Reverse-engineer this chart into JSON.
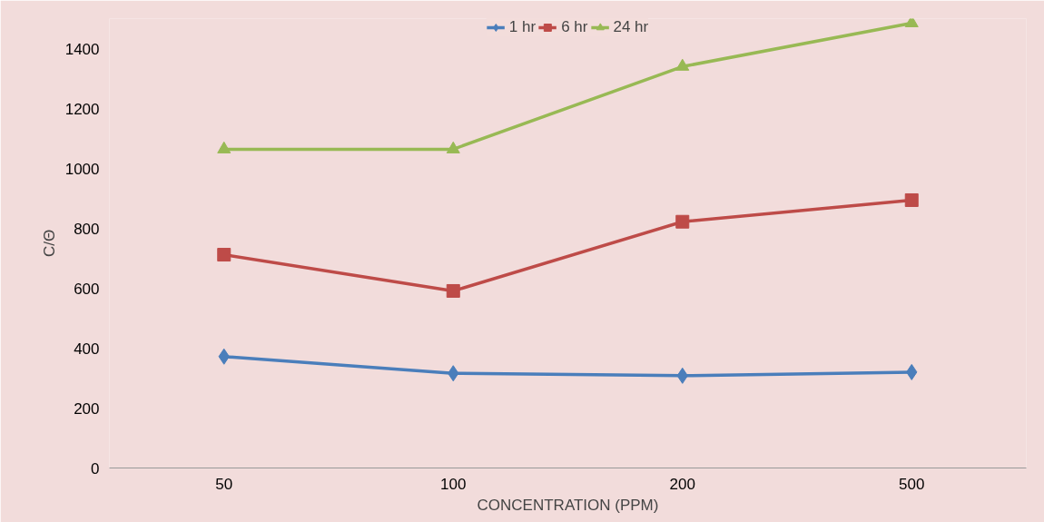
{
  "chart_data": {
    "type": "line",
    "xlabel": "CONCENTRATION (PPM)",
    "ylabel": "C/Θ",
    "categories": [
      "50",
      "100",
      "200",
      "500"
    ],
    "ylim": [
      0,
      1500
    ],
    "yticks": [
      0,
      200,
      400,
      600,
      800,
      1000,
      1200,
      1400
    ],
    "grid": false,
    "legend": "top",
    "series": [
      {
        "name": "1 hr",
        "color": "#4a7ebb",
        "marker": "diamond",
        "values": [
          372,
          316,
          308,
          320
        ]
      },
      {
        "name": "6 hr",
        "color": "#be4b48",
        "marker": "square",
        "values": [
          712,
          591,
          822,
          894
        ]
      },
      {
        "name": "24 hr",
        "color": "#98b954",
        "marker": "triangle",
        "values": [
          1064,
          1064,
          1340,
          1485
        ]
      }
    ]
  }
}
